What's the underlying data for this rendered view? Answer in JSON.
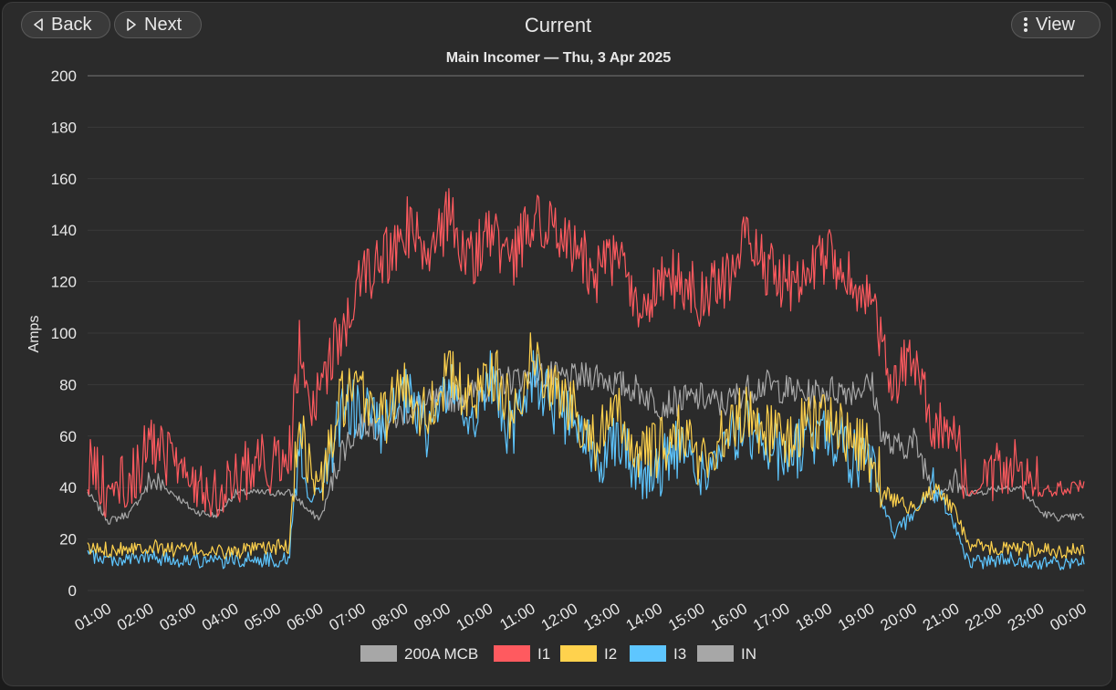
{
  "header": {
    "back_label": "Back",
    "next_label": "Next",
    "title": "Current",
    "view_label": "View",
    "back_icon": "triangle-left-icon",
    "next_icon": "triangle-right-icon",
    "view_icon": "kebab-menu-icon"
  },
  "colors": {
    "I1": "#ff5a5f",
    "I2": "#ffd24d",
    "I3": "#5ec6ff",
    "IN": "#a7a7a7",
    "MCB": "#a7a7a7",
    "grid": "#3a3a3a",
    "text": "#e8e8e8"
  },
  "chart_data": {
    "type": "line",
    "title": "Main Incomer — Thu, 3 Apr 2025",
    "xlabel": "",
    "ylabel": "Amps",
    "ylim": [
      0,
      200
    ],
    "yticks": [
      0,
      20,
      40,
      60,
      80,
      100,
      120,
      140,
      160,
      180,
      200
    ],
    "x_unit": "hours",
    "xlim": [
      0.5,
      24
    ],
    "xtick_labels": [
      "01:00",
      "02:00",
      "03:00",
      "04:00",
      "05:00",
      "06:00",
      "07:00",
      "08:00",
      "09:00",
      "10:00",
      "11:00",
      "12:00",
      "13:00",
      "14:00",
      "15:00",
      "16:00",
      "17:00",
      "18:00",
      "19:00",
      "20:00",
      "21:00",
      "22:00",
      "23:00",
      "00:00"
    ],
    "legend_position": "bottom",
    "legend": [
      "200A MCB",
      "I1",
      "I2",
      "I3",
      "IN"
    ],
    "x": [
      0.5,
      1.0,
      1.5,
      2.0,
      2.5,
      3.0,
      3.5,
      4.0,
      4.5,
      5.0,
      5.25,
      5.5,
      5.75,
      6.0,
      6.5,
      7.0,
      7.5,
      8.0,
      8.5,
      9.0,
      9.5,
      10.0,
      10.5,
      11.0,
      11.5,
      12.0,
      12.5,
      13.0,
      13.5,
      14.0,
      14.5,
      15.0,
      15.5,
      16.0,
      16.5,
      17.0,
      17.5,
      18.0,
      18.5,
      19.0,
      19.25,
      19.5,
      20.0,
      20.5,
      21.0,
      21.25,
      21.5,
      22.0,
      22.5,
      23.0,
      23.5,
      24.0
    ],
    "series": [
      {
        "name": "200A MCB",
        "values": [
          200,
          200,
          200,
          200,
          200,
          200,
          200,
          200,
          200,
          200,
          200,
          200,
          200,
          200,
          200,
          200,
          200,
          200,
          200,
          200,
          200,
          200,
          200,
          200,
          200,
          200,
          200,
          200,
          200,
          200,
          200,
          200,
          200,
          200,
          200,
          200,
          200,
          200,
          200,
          200,
          200,
          200,
          200,
          200,
          200,
          200,
          200,
          200,
          200,
          200,
          200,
          200
        ]
      },
      {
        "name": "I1",
        "values": [
          49,
          39,
          41,
          58,
          49,
          41,
          40,
          43,
          50,
          49,
          50,
          95,
          65,
          78,
          102,
          120,
          128,
          142,
          130,
          145,
          128,
          140,
          125,
          148,
          138,
          135,
          122,
          130,
          108,
          118,
          122,
          112,
          120,
          135,
          125,
          118,
          126,
          130,
          120,
          108,
          98,
          80,
          92,
          62,
          58,
          38,
          38,
          49,
          48,
          38,
          40,
          40
        ]
      },
      {
        "name": "I2",
        "values": [
          16,
          16,
          17,
          17,
          16,
          16,
          15,
          15,
          16,
          17,
          17,
          70,
          45,
          40,
          75,
          75,
          68,
          80,
          68,
          85,
          72,
          88,
          68,
          92,
          78,
          70,
          58,
          68,
          52,
          55,
          62,
          50,
          60,
          70,
          62,
          58,
          65,
          68,
          58,
          52,
          40,
          35,
          32,
          40,
          30,
          18,
          17,
          16,
          16,
          16,
          15,
          16
        ]
      },
      {
        "name": "I3",
        "values": [
          14,
          12,
          12,
          13,
          12,
          12,
          11,
          12,
          12,
          12,
          12,
          60,
          35,
          40,
          70,
          70,
          62,
          75,
          62,
          80,
          66,
          82,
          60,
          86,
          72,
          64,
          50,
          62,
          45,
          48,
          56,
          44,
          54,
          64,
          56,
          52,
          58,
          62,
          52,
          46,
          34,
          22,
          30,
          42,
          22,
          12,
          11,
          12,
          12,
          11,
          10,
          11
        ]
      },
      {
        "name": "IN",
        "values": [
          38,
          27,
          30,
          43,
          38,
          31,
          29,
          38,
          38,
          38,
          38,
          35,
          30,
          28,
          55,
          65,
          64,
          70,
          72,
          75,
          76,
          80,
          82,
          84,
          83,
          82,
          84,
          80,
          78,
          72,
          74,
          75,
          72,
          78,
          80,
          78,
          76,
          78,
          78,
          80,
          60,
          55,
          58,
          38,
          42,
          38,
          38,
          40,
          40,
          30,
          28,
          29
        ]
      }
    ]
  }
}
